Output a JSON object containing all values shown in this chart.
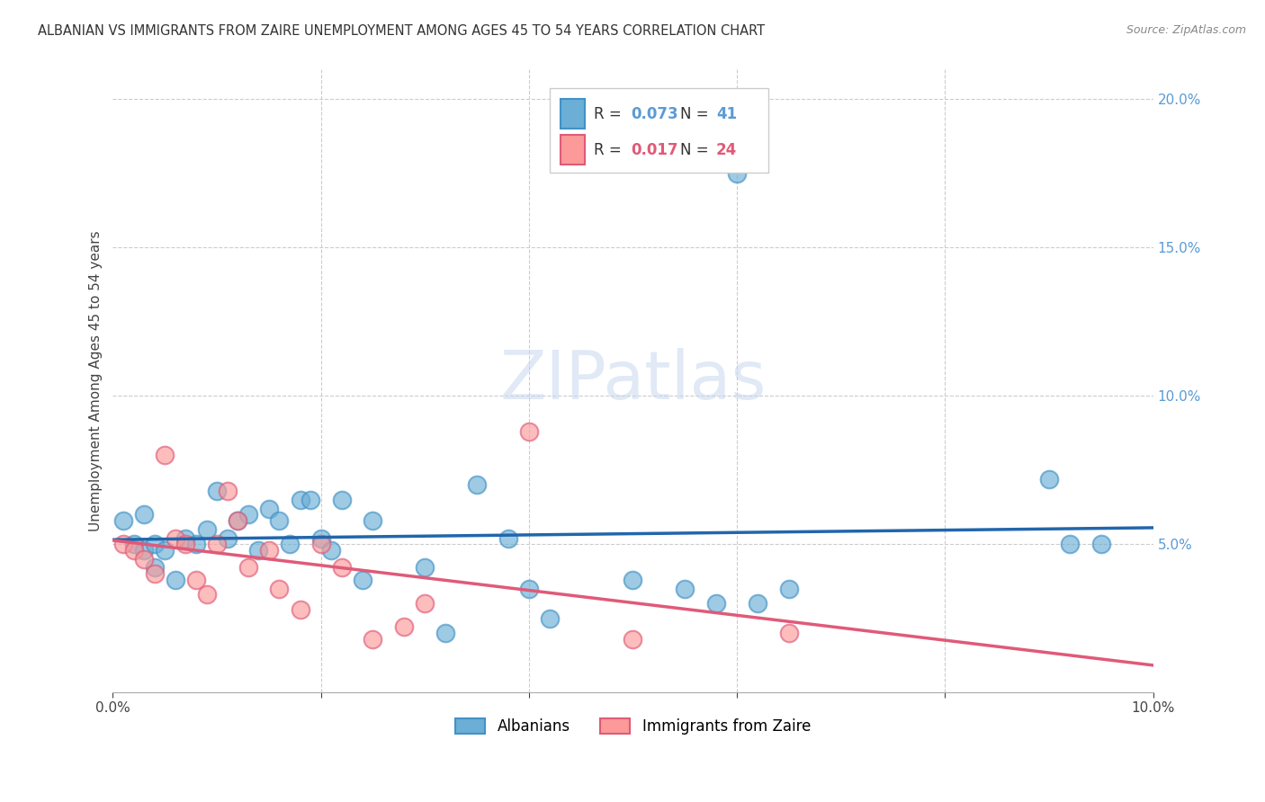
{
  "title": "ALBANIAN VS IMMIGRANTS FROM ZAIRE UNEMPLOYMENT AMONG AGES 45 TO 54 YEARS CORRELATION CHART",
  "source": "Source: ZipAtlas.com",
  "ylabel": "Unemployment Among Ages 45 to 54 years",
  "xlim": [
    0.0,
    0.1
  ],
  "ylim": [
    0.0,
    0.21
  ],
  "background_color": "#ffffff",
  "grid_color": "#cccccc",
  "albanians_color": "#6baed6",
  "albanians_edge": "#4292c6",
  "zaire_color": "#fb9a99",
  "zaire_edge": "#e05a78",
  "blue_line_color": "#2166ac",
  "pink_line_color": "#e05a78",
  "legend_R_albanian": "0.073",
  "legend_N_albanian": "41",
  "legend_R_zaire": "0.017",
  "legend_N_zaire": "24",
  "alb_x": [
    0.001,
    0.002,
    0.003,
    0.003,
    0.004,
    0.004,
    0.005,
    0.006,
    0.007,
    0.008,
    0.009,
    0.01,
    0.011,
    0.012,
    0.013,
    0.014,
    0.015,
    0.016,
    0.017,
    0.018,
    0.019,
    0.02,
    0.021,
    0.022,
    0.024,
    0.025,
    0.03,
    0.032,
    0.035,
    0.038,
    0.04,
    0.042,
    0.05,
    0.055,
    0.058,
    0.06,
    0.062,
    0.065,
    0.09,
    0.092,
    0.095
  ],
  "alb_y": [
    0.058,
    0.05,
    0.048,
    0.06,
    0.05,
    0.042,
    0.048,
    0.038,
    0.052,
    0.05,
    0.055,
    0.068,
    0.052,
    0.058,
    0.06,
    0.048,
    0.062,
    0.058,
    0.05,
    0.065,
    0.065,
    0.052,
    0.048,
    0.065,
    0.038,
    0.058,
    0.042,
    0.02,
    0.07,
    0.052,
    0.035,
    0.025,
    0.038,
    0.035,
    0.03,
    0.175,
    0.03,
    0.035,
    0.072,
    0.05,
    0.05
  ],
  "zaire_x": [
    0.001,
    0.002,
    0.003,
    0.004,
    0.005,
    0.006,
    0.007,
    0.008,
    0.009,
    0.01,
    0.011,
    0.012,
    0.013,
    0.015,
    0.016,
    0.018,
    0.02,
    0.022,
    0.025,
    0.028,
    0.03,
    0.04,
    0.05,
    0.065
  ],
  "zaire_y": [
    0.05,
    0.048,
    0.045,
    0.04,
    0.08,
    0.052,
    0.05,
    0.038,
    0.033,
    0.05,
    0.068,
    0.058,
    0.042,
    0.048,
    0.035,
    0.028,
    0.05,
    0.042,
    0.018,
    0.022,
    0.03,
    0.088,
    0.018,
    0.02
  ]
}
